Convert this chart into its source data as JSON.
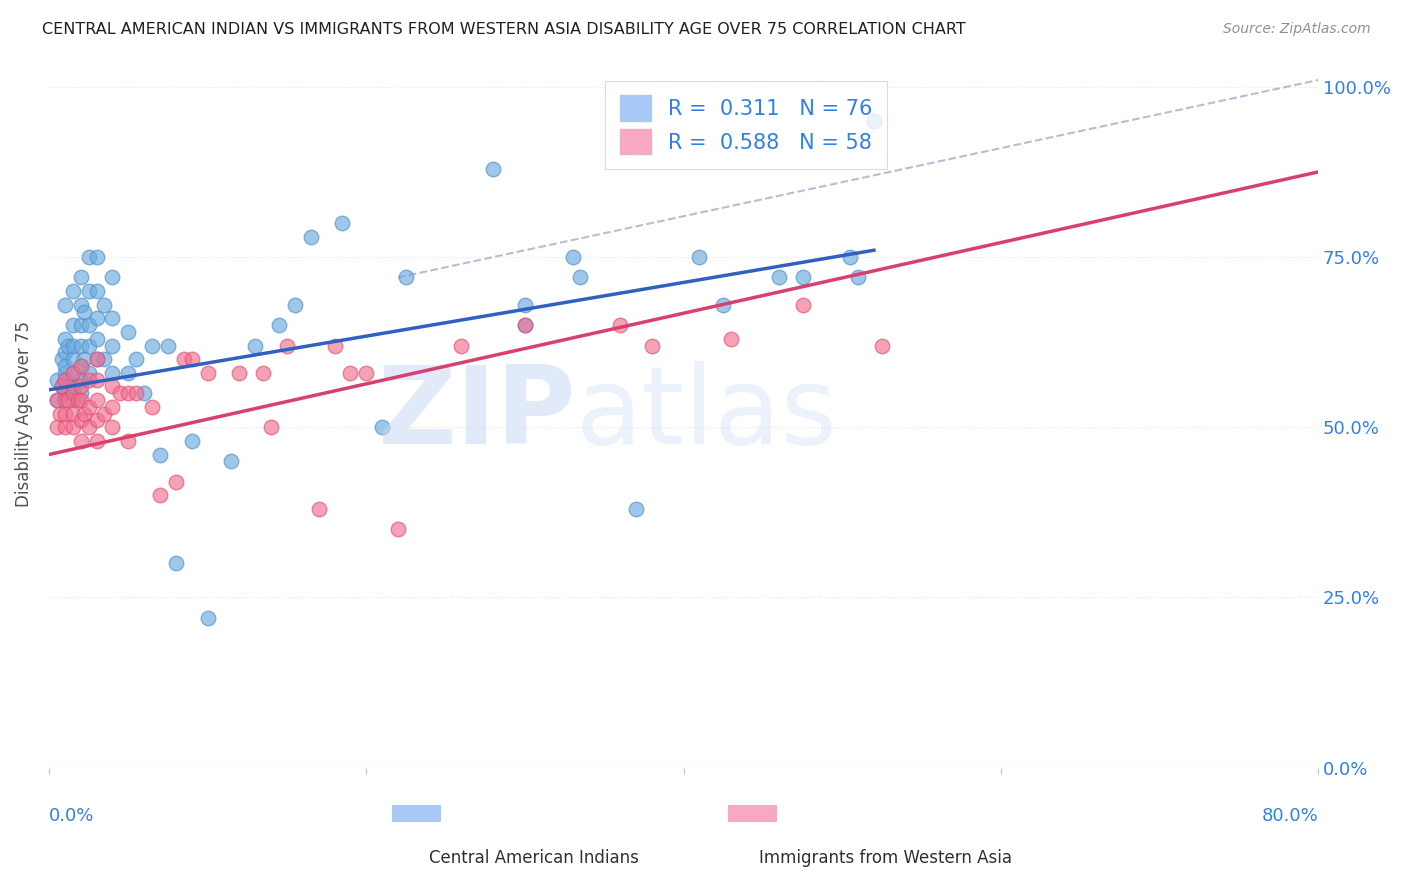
{
  "title": "CENTRAL AMERICAN INDIAN VS IMMIGRANTS FROM WESTERN ASIA DISABILITY AGE OVER 75 CORRELATION CHART",
  "source": "Source: ZipAtlas.com",
  "ylabel": "Disability Age Over 75",
  "xmin": 0.0,
  "xmax": 0.8,
  "ymin": 0.0,
  "ymax": 1.04,
  "legend_color1": "#a8c8f8",
  "legend_color2": "#f8a8c0",
  "watermark_zip_color": "#c8daf5",
  "watermark_atlas_color": "#c8daf5",
  "blue_scatter_color": "#6aaae0",
  "pink_scatter_color": "#f07090",
  "blue_scatter_edge": "#5090c8",
  "pink_scatter_edge": "#e05070",
  "blue_line_color": "#3060c0",
  "pink_line_color": "#d84070",
  "dash_line_color": "#a0b0c8",
  "grid_color": "#dde8f0",
  "axis_label_color": "#3080e8",
  "title_color": "#202020",
  "source_color": "#909090",
  "blue_line_x0": 0.0,
  "blue_line_x1": 0.52,
  "blue_line_y0": 0.555,
  "blue_line_y1": 0.76,
  "pink_line_x0": 0.0,
  "pink_line_x1": 0.8,
  "pink_line_y0": 0.46,
  "pink_line_y1": 0.875,
  "dash_line_x0": 0.22,
  "dash_line_x1": 0.8,
  "dash_line_y0": 0.72,
  "dash_line_y1": 1.01,
  "blue_points_x": [
    0.005,
    0.005,
    0.008,
    0.008,
    0.01,
    0.01,
    0.01,
    0.01,
    0.01,
    0.01,
    0.01,
    0.012,
    0.012,
    0.015,
    0.015,
    0.015,
    0.015,
    0.015,
    0.015,
    0.015,
    0.02,
    0.02,
    0.02,
    0.02,
    0.02,
    0.02,
    0.02,
    0.022,
    0.022,
    0.025,
    0.025,
    0.025,
    0.025,
    0.025,
    0.03,
    0.03,
    0.03,
    0.03,
    0.03,
    0.035,
    0.035,
    0.04,
    0.04,
    0.04,
    0.04,
    0.05,
    0.05,
    0.055,
    0.06,
    0.065,
    0.07,
    0.075,
    0.08,
    0.09,
    0.1,
    0.115,
    0.13,
    0.145,
    0.155,
    0.165,
    0.185,
    0.21,
    0.225,
    0.28,
    0.3,
    0.3,
    0.33,
    0.335,
    0.37,
    0.41,
    0.425,
    0.46,
    0.475,
    0.505,
    0.51,
    0.52
  ],
  "blue_points_y": [
    0.54,
    0.57,
    0.56,
    0.6,
    0.55,
    0.57,
    0.58,
    0.59,
    0.61,
    0.63,
    0.68,
    0.56,
    0.62,
    0.54,
    0.56,
    0.58,
    0.6,
    0.62,
    0.65,
    0.7,
    0.55,
    0.57,
    0.59,
    0.62,
    0.65,
    0.68,
    0.72,
    0.6,
    0.67,
    0.58,
    0.62,
    0.65,
    0.7,
    0.75,
    0.6,
    0.63,
    0.66,
    0.7,
    0.75,
    0.6,
    0.68,
    0.58,
    0.62,
    0.66,
    0.72,
    0.58,
    0.64,
    0.6,
    0.55,
    0.62,
    0.46,
    0.62,
    0.3,
    0.48,
    0.22,
    0.45,
    0.62,
    0.65,
    0.68,
    0.78,
    0.8,
    0.5,
    0.72,
    0.88,
    0.65,
    0.68,
    0.75,
    0.72,
    0.38,
    0.75,
    0.68,
    0.72,
    0.72,
    0.75,
    0.72,
    0.95
  ],
  "pink_points_x": [
    0.005,
    0.005,
    0.007,
    0.008,
    0.01,
    0.01,
    0.01,
    0.01,
    0.012,
    0.015,
    0.015,
    0.015,
    0.015,
    0.018,
    0.02,
    0.02,
    0.02,
    0.02,
    0.02,
    0.022,
    0.025,
    0.025,
    0.025,
    0.03,
    0.03,
    0.03,
    0.03,
    0.03,
    0.035,
    0.04,
    0.04,
    0.04,
    0.045,
    0.05,
    0.05,
    0.055,
    0.065,
    0.07,
    0.08,
    0.085,
    0.09,
    0.1,
    0.12,
    0.135,
    0.14,
    0.15,
    0.17,
    0.18,
    0.19,
    0.2,
    0.22,
    0.26,
    0.3,
    0.36,
    0.38,
    0.43,
    0.475,
    0.525
  ],
  "pink_points_y": [
    0.5,
    0.54,
    0.52,
    0.56,
    0.5,
    0.52,
    0.54,
    0.57,
    0.54,
    0.5,
    0.52,
    0.55,
    0.58,
    0.54,
    0.48,
    0.51,
    0.54,
    0.56,
    0.59,
    0.52,
    0.5,
    0.53,
    0.57,
    0.48,
    0.51,
    0.54,
    0.57,
    0.6,
    0.52,
    0.5,
    0.53,
    0.56,
    0.55,
    0.48,
    0.55,
    0.55,
    0.53,
    0.4,
    0.42,
    0.6,
    0.6,
    0.58,
    0.58,
    0.58,
    0.5,
    0.62,
    0.38,
    0.62,
    0.58,
    0.58,
    0.35,
    0.62,
    0.65,
    0.65,
    0.62,
    0.63,
    0.68,
    0.62
  ],
  "ytick_values": [
    0.0,
    0.25,
    0.5,
    0.75,
    1.0
  ],
  "ytick_labels": [
    "0.0%",
    "25.0%",
    "50.0%",
    "75.0%",
    "100.0%"
  ],
  "legend_R1": "0.311",
  "legend_N1": "76",
  "legend_R2": "0.588",
  "legend_N2": "58"
}
